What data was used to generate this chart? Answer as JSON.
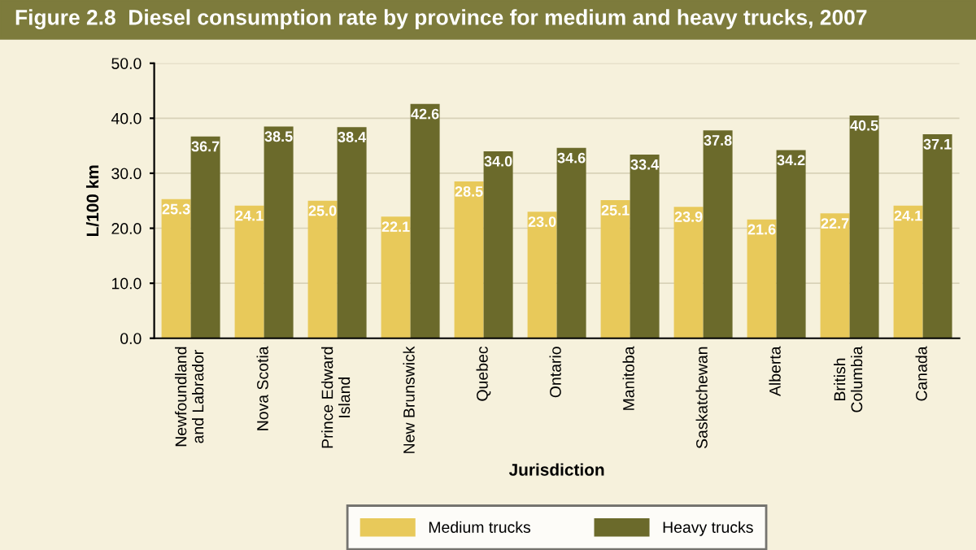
{
  "chart_data": {
    "type": "bar",
    "title": "Figure 2.8  Diesel consumption rate by province for medium and heavy trucks, 2007",
    "xlabel": "Jurisdiction",
    "ylabel": "L/100 km",
    "categories": [
      "Newfoundland\nand Labrador",
      "Nova Scotia",
      "Prince Edward\nIsland",
      "New Brunswick",
      "Quebec",
      "Ontario",
      "Manitoba",
      "Saskatchewan",
      "Alberta",
      "British\nColumbia",
      "Canada"
    ],
    "series": [
      {
        "name": "Medium trucks",
        "color": "#e8c95a",
        "values": [
          25.3,
          24.1,
          25.0,
          22.1,
          28.5,
          23.0,
          25.1,
          23.9,
          21.6,
          22.7,
          24.1
        ],
        "value_labels": [
          "25.3",
          "24.1",
          "25.0",
          "22.1",
          "28.5",
          "23.0",
          "25.1",
          "23.9",
          "21.6",
          "22.7",
          "24.1"
        ]
      },
      {
        "name": "Heavy trucks",
        "color": "#6b6a2b",
        "values": [
          36.7,
          38.5,
          38.4,
          42.6,
          34.0,
          34.6,
          33.4,
          37.8,
          34.2,
          40.5,
          37.1
        ],
        "value_labels": [
          "36.7",
          "38.5",
          "38.4",
          "42.6",
          "34.0",
          "34.6",
          "33.4",
          "37.8",
          "34.2",
          "40.5",
          "37.1"
        ]
      }
    ],
    "ylim": [
      0,
      50
    ],
    "yticks": [
      {
        "value": 0,
        "label": "0.0"
      },
      {
        "value": 10,
        "label": "10.0"
      },
      {
        "value": 20,
        "label": "20.0"
      },
      {
        "value": 30,
        "label": "30.0"
      },
      {
        "value": 40,
        "label": "40.0"
      },
      {
        "value": 50,
        "label": "50.0"
      }
    ],
    "grid": "y",
    "legend": "bottom"
  }
}
